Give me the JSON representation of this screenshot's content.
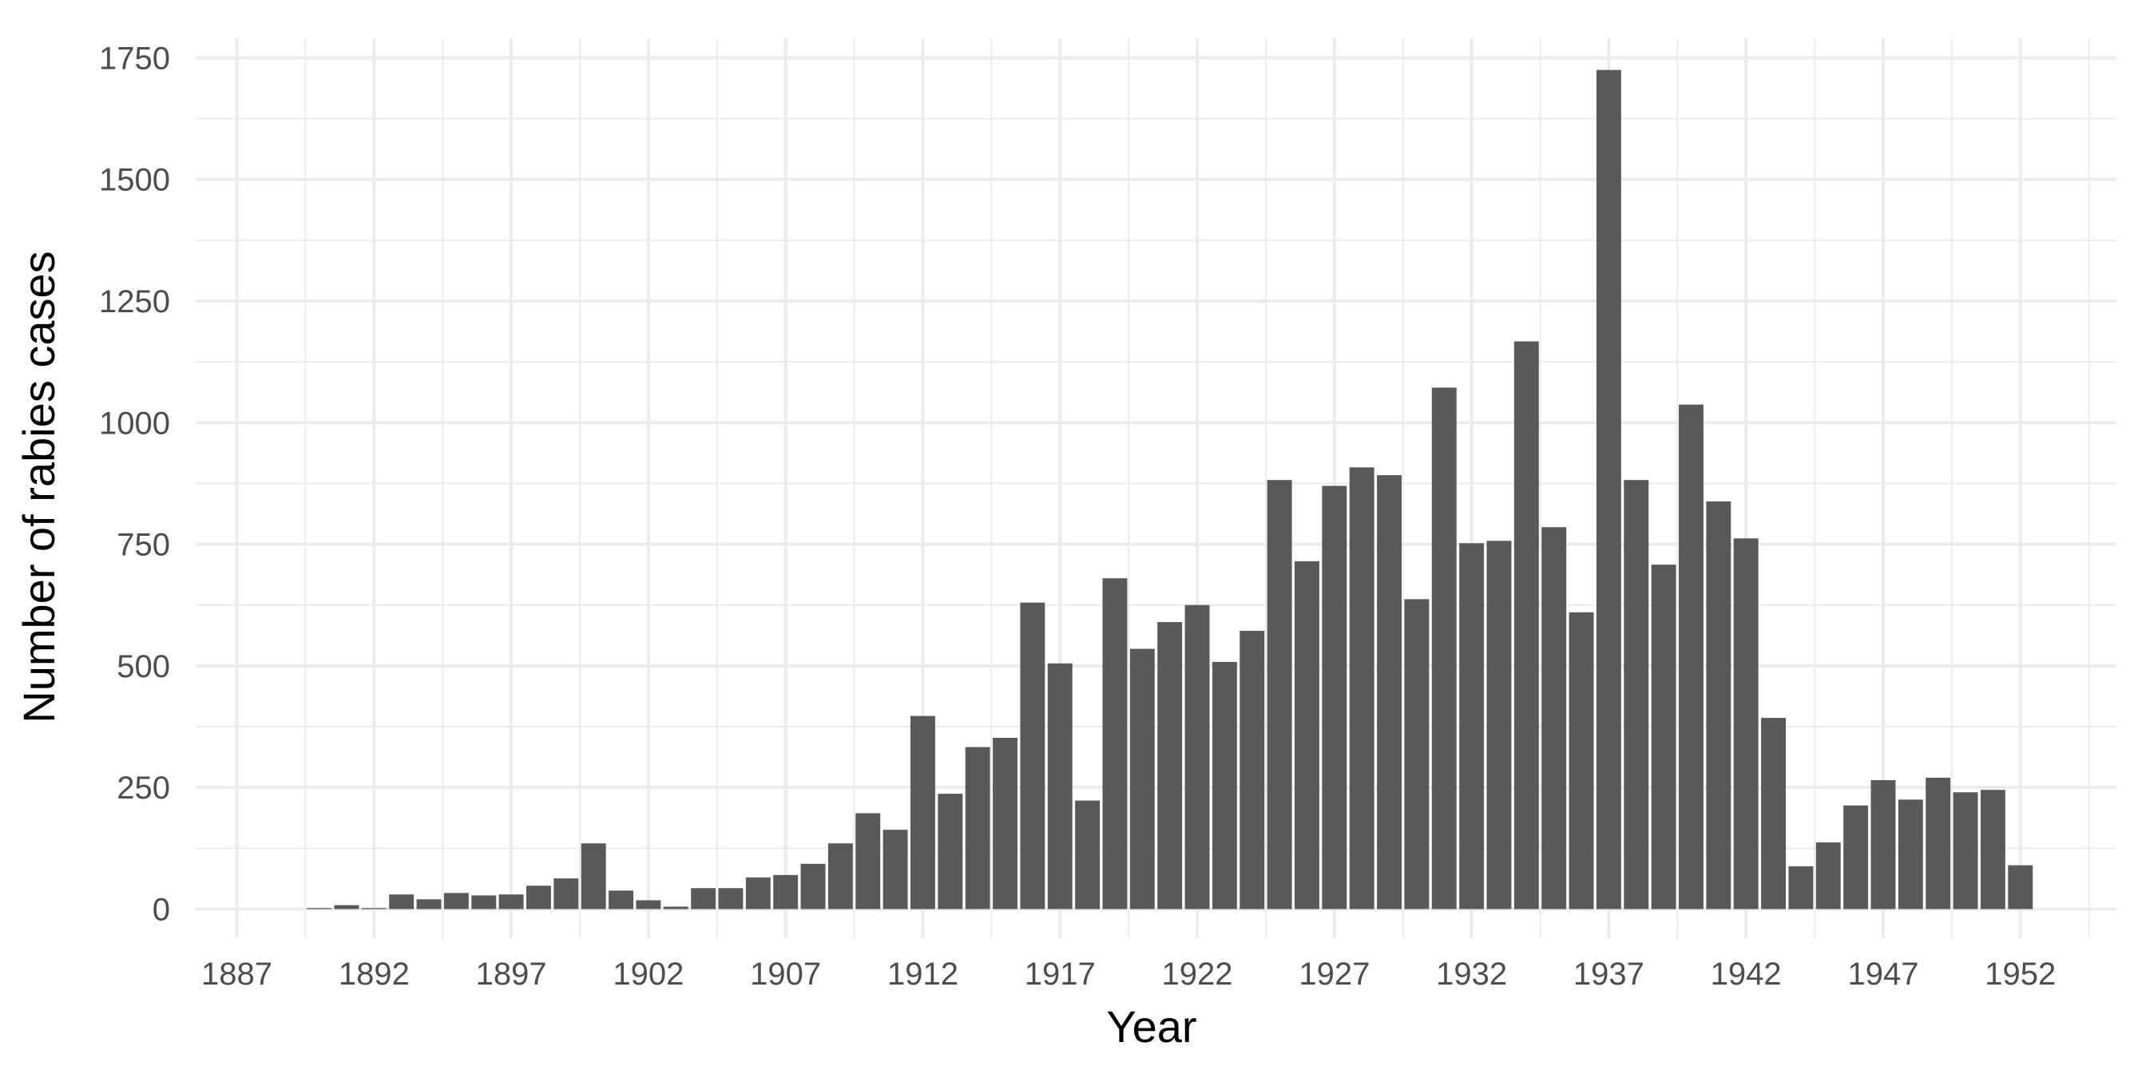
{
  "chart_data": {
    "type": "bar",
    "xlabel": "Year",
    "ylabel": "Number of rabies cases",
    "xlim": [
      1885.5,
      1955.5
    ],
    "ylim": [
      -60,
      1790
    ],
    "x_ticks": [
      1887,
      1892,
      1897,
      1902,
      1907,
      1912,
      1917,
      1922,
      1927,
      1932,
      1937,
      1942,
      1947,
      1952
    ],
    "y_ticks": [
      0,
      250,
      500,
      750,
      1000,
      1250,
      1500,
      1750
    ],
    "grid": true,
    "bar_color": "#595959",
    "grid_color": "#ebebeb",
    "x": [
      1890,
      1891,
      1892,
      1893,
      1894,
      1895,
      1896,
      1897,
      1898,
      1899,
      1900,
      1901,
      1902,
      1903,
      1904,
      1905,
      1906,
      1907,
      1908,
      1909,
      1910,
      1911,
      1912,
      1913,
      1914,
      1915,
      1916,
      1917,
      1918,
      1919,
      1920,
      1921,
      1922,
      1923,
      1924,
      1925,
      1926,
      1927,
      1928,
      1929,
      1930,
      1931,
      1932,
      1933,
      1934,
      1935,
      1936,
      1937,
      1938,
      1939,
      1940,
      1941,
      1942,
      1943,
      1944,
      1945,
      1946,
      1947,
      1948,
      1949,
      1950,
      1951,
      1952
    ],
    "values": [
      2,
      8,
      2,
      30,
      20,
      33,
      28,
      30,
      48,
      63,
      135,
      38,
      18,
      5,
      43,
      43,
      65,
      70,
      93,
      135,
      197,
      163,
      397,
      237,
      333,
      352,
      630,
      505,
      223,
      680,
      535,
      590,
      625,
      508,
      572,
      882,
      715,
      870,
      908,
      892,
      637,
      1072,
      752,
      757,
      1167,
      785,
      610,
      1725,
      882,
      708,
      1037,
      838,
      762,
      393,
      88,
      137,
      213,
      265,
      225,
      270,
      240,
      245,
      90
    ]
  }
}
